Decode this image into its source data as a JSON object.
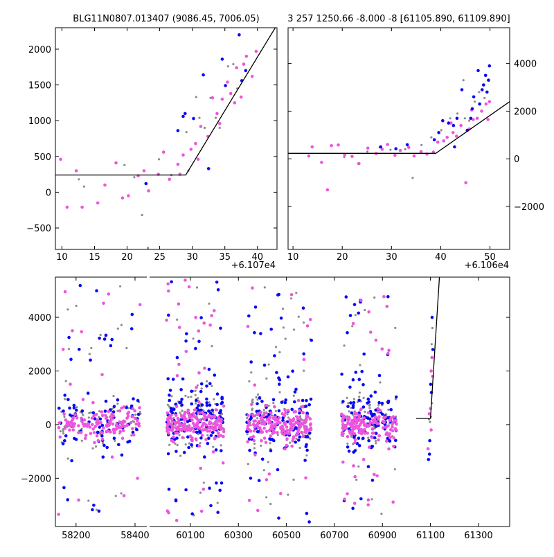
{
  "colors": {
    "blue": "#0a0af5",
    "magenta": "#ee55dd",
    "gray": "#8c8c8c",
    "line": "#000000",
    "frame": "#000000",
    "bg": "#ffffff"
  },
  "chart_data": [
    {
      "type": "scatter",
      "title": "BLG11N0807.013407 (9086.45, 7006.05)",
      "xlabel": "",
      "ylabel": "",
      "x_offset_label": "+6.107e4",
      "xlim": [
        9,
        43
      ],
      "ylim": [
        -800,
        2300
      ],
      "xticks": [
        10,
        15,
        20,
        25,
        30,
        35,
        40
      ],
      "yticks": [
        -500,
        0,
        500,
        1000,
        1500,
        2000
      ],
      "grid": false,
      "series": [
        {
          "color": "magenta",
          "points": [
            [
              9.8,
              460
            ],
            [
              10.8,
              -210
            ],
            [
              12.2,
              300
            ],
            [
              13.1,
              -210
            ],
            [
              15.5,
              -150
            ],
            [
              16.6,
              100
            ],
            [
              18.3,
              410
            ],
            [
              19.3,
              -80
            ],
            [
              20.2,
              -50
            ],
            [
              21.7,
              230
            ],
            [
              22.6,
              300
            ],
            [
              23.3,
              20
            ],
            [
              24.8,
              250
            ],
            [
              25.6,
              560
            ],
            [
              26.5,
              180
            ],
            [
              27.8,
              390
            ],
            [
              28.6,
              520
            ],
            [
              29.8,
              600
            ],
            [
              30.5,
              680
            ],
            [
              31.3,
              920
            ],
            [
              32.4,
              780
            ],
            [
              33.1,
              1320
            ],
            [
              33.8,
              1100
            ],
            [
              34.6,
              1300
            ],
            [
              35.4,
              1540
            ],
            [
              36.5,
              1250
            ],
            [
              37.5,
              1330
            ],
            [
              38.3,
              1900
            ],
            [
              39.2,
              1620
            ],
            [
              36.8,
              1740
            ],
            [
              35.9,
              1380
            ],
            [
              30.9,
              460
            ],
            [
              28.1,
              250
            ],
            [
              34.2,
              960
            ],
            [
              37.9,
              1790
            ],
            [
              39.8,
              1970
            ]
          ]
        },
        {
          "color": "blue",
          "points": [
            [
              22.9,
              120
            ],
            [
              27.8,
              860
            ],
            [
              28.6,
              1060
            ],
            [
              28.9,
              1100
            ],
            [
              30.2,
              1030
            ],
            [
              31.7,
              1640
            ],
            [
              32.5,
              330
            ],
            [
              34.6,
              1860
            ],
            [
              35.1,
              1490
            ],
            [
              37.6,
              1560
            ],
            [
              38.2,
              1700
            ],
            [
              37.2,
              2200
            ]
          ]
        },
        {
          "color": "gray",
          "points": [
            [
              12.6,
              180
            ],
            [
              13.4,
              80
            ],
            [
              19.6,
              380
            ],
            [
              21.1,
              210
            ],
            [
              22.3,
              -320
            ],
            [
              23.2,
              -780
            ],
            [
              24.9,
              460
            ],
            [
              26.8,
              240
            ],
            [
              29.4,
              300
            ],
            [
              30.6,
              1330
            ],
            [
              31.1,
              1040
            ],
            [
              32.8,
              1320
            ],
            [
              33.6,
              1040
            ],
            [
              34.2,
              900
            ],
            [
              35.5,
              1760
            ],
            [
              36.3,
              1790
            ],
            [
              31.9,
              900
            ],
            [
              29.1,
              840
            ],
            [
              36.9,
              1450
            ]
          ]
        }
      ],
      "model_line": [
        [
          9,
          240
        ],
        [
          29,
          240
        ],
        [
          43,
          2340
        ]
      ]
    },
    {
      "type": "scatter",
      "title": "3 257 1250.66 -8.000 -8 [61105.890, 61109.890]",
      "xlabel": "",
      "ylabel": "",
      "x_offset_label": "+6.106e4",
      "xlim": [
        9,
        54
      ],
      "ylim": [
        -3800,
        5500
      ],
      "xticks": [
        10,
        20,
        30,
        40,
        50
      ],
      "yticks": [
        -2000,
        0,
        2000,
        4000
      ],
      "grid": false,
      "series": [
        {
          "color": "magenta",
          "points": [
            [
              13.2,
              120
            ],
            [
              13.9,
              500
            ],
            [
              15.8,
              -150
            ],
            [
              17.0,
              -1300
            ],
            [
              17.8,
              550
            ],
            [
              19.2,
              580
            ],
            [
              20.5,
              170
            ],
            [
              22.0,
              100
            ],
            [
              23.4,
              -200
            ],
            [
              25.2,
              450
            ],
            [
              26.9,
              220
            ],
            [
              28.1,
              400
            ],
            [
              29.2,
              600
            ],
            [
              30.7,
              150
            ],
            [
              31.8,
              350
            ],
            [
              33.5,
              480
            ],
            [
              34.6,
              120
            ],
            [
              36.0,
              300
            ],
            [
              37.2,
              200
            ],
            [
              38.5,
              280
            ],
            [
              39.4,
              700
            ],
            [
              40.6,
              750
            ],
            [
              41.3,
              900
            ],
            [
              42.5,
              1100
            ],
            [
              43.2,
              950
            ],
            [
              44.1,
              1400
            ],
            [
              45.1,
              -1000
            ],
            [
              45.8,
              1250
            ],
            [
              46.6,
              1650
            ],
            [
              47.4,
              1700
            ],
            [
              48.3,
              2000
            ],
            [
              49.2,
              2300
            ],
            [
              49.9,
              2400
            ],
            [
              49.6,
              1650
            ],
            [
              46.3,
              2050
            ],
            [
              42.1,
              1500
            ]
          ]
        },
        {
          "color": "blue",
          "points": [
            [
              27.8,
              500
            ],
            [
              30.9,
              420
            ],
            [
              33.2,
              590
            ],
            [
              38.7,
              800
            ],
            [
              39.6,
              1100
            ],
            [
              41.6,
              1500
            ],
            [
              42.6,
              1400
            ],
            [
              43.3,
              1700
            ],
            [
              44.3,
              2900
            ],
            [
              45.4,
              1200
            ],
            [
              46.1,
              1700
            ],
            [
              46.7,
              2600
            ],
            [
              47.6,
              3700
            ],
            [
              48.4,
              2900
            ],
            [
              49.1,
              3500
            ],
            [
              49.7,
              3300
            ],
            [
              49.9,
              3900
            ],
            [
              49.4,
              2800
            ],
            [
              48.7,
              3100
            ],
            [
              47.9,
              2300
            ],
            [
              46.4,
              2100
            ],
            [
              42.8,
              500
            ],
            [
              40.4,
              1600
            ]
          ]
        },
        {
          "color": "gray",
          "points": [
            [
              20.4,
              80
            ],
            [
              23.2,
              -200
            ],
            [
              25.1,
              300
            ],
            [
              27.6,
              480
            ],
            [
              29.8,
              380
            ],
            [
              32.8,
              400
            ],
            [
              34.3,
              -800
            ],
            [
              36.1,
              580
            ],
            [
              38.1,
              900
            ],
            [
              40.1,
              1200
            ],
            [
              41.9,
              1700
            ],
            [
              43.4,
              1900
            ],
            [
              44.6,
              3300
            ],
            [
              45.8,
              1600
            ],
            [
              46.9,
              2400
            ],
            [
              47.8,
              2800
            ],
            [
              48.9,
              2550
            ],
            [
              44.9,
              1700
            ]
          ]
        }
      ],
      "model_line": [
        [
          9,
          230
        ],
        [
          39,
          230
        ],
        [
          54,
          2400
        ]
      ]
    },
    {
      "type": "scatter",
      "title": "",
      "xlabel": "",
      "ylabel": "",
      "broken_x_axis": true,
      "panels": [
        {
          "xlim": [
            58130,
            58440
          ],
          "xticks": [
            58200,
            58400
          ]
        },
        {
          "xlim": [
            59930,
            61430
          ],
          "xticks": [
            60100,
            60300,
            60500,
            60700,
            60900,
            61100,
            61300
          ]
        }
      ],
      "ylim": [
        -3800,
        5500
      ],
      "yticks": [
        -2000,
        0,
        2000,
        4000
      ],
      "grid": false,
      "clusters": [
        {
          "x_range": [
            58140,
            58420
          ],
          "n_core": 240,
          "n_outliers": 70,
          "core_sd": 350,
          "spread_low": -3400,
          "spread_high": 5200
        },
        {
          "x_range": [
            60000,
            60240
          ],
          "n_core": 340,
          "n_outliers": 100,
          "core_sd": 380,
          "spread_low": -3600,
          "spread_high": 5400
        },
        {
          "x_range": [
            60335,
            60605
          ],
          "n_core": 330,
          "n_outliers": 95,
          "core_sd": 380,
          "spread_low": -3700,
          "spread_high": 5200
        },
        {
          "x_range": [
            60730,
            60960
          ],
          "n_core": 300,
          "n_outliers": 85,
          "core_sd": 360,
          "spread_low": -3500,
          "spread_high": 4900
        }
      ],
      "event_points": [
        [
          61090,
          -900
        ],
        [
          61092,
          -1300
        ],
        [
          61094,
          200
        ],
        [
          61095,
          400
        ],
        [
          61097,
          -600
        ],
        [
          61098,
          100
        ],
        [
          61100,
          600
        ],
        [
          61101,
          1500
        ],
        [
          61102,
          300
        ],
        [
          61103,
          2000
        ],
        [
          61104,
          1200
        ],
        [
          61105,
          3000
        ],
        [
          61106,
          2500
        ],
        [
          61107,
          4000
        ],
        [
          61108,
          3600
        ],
        [
          61109,
          1800
        ],
        [
          61110,
          2800
        ],
        [
          61106,
          800
        ],
        [
          61103,
          -200
        ],
        [
          61096,
          -1100
        ]
      ],
      "model_line": [
        [
          61040,
          230
        ],
        [
          61100,
          230
        ],
        [
          61155,
          8000
        ]
      ]
    }
  ]
}
